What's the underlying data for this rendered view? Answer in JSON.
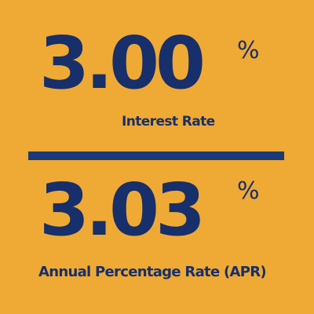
{
  "colors": {
    "background": "#EFA935",
    "text": "#172F6A",
    "divider": "#1A3A78"
  },
  "rates": [
    {
      "value": "3.00",
      "symbol": "%",
      "label": "Interest Rate"
    },
    {
      "value": "3.03",
      "symbol": "%",
      "label": "Annual Percentage Rate (APR)"
    }
  ]
}
